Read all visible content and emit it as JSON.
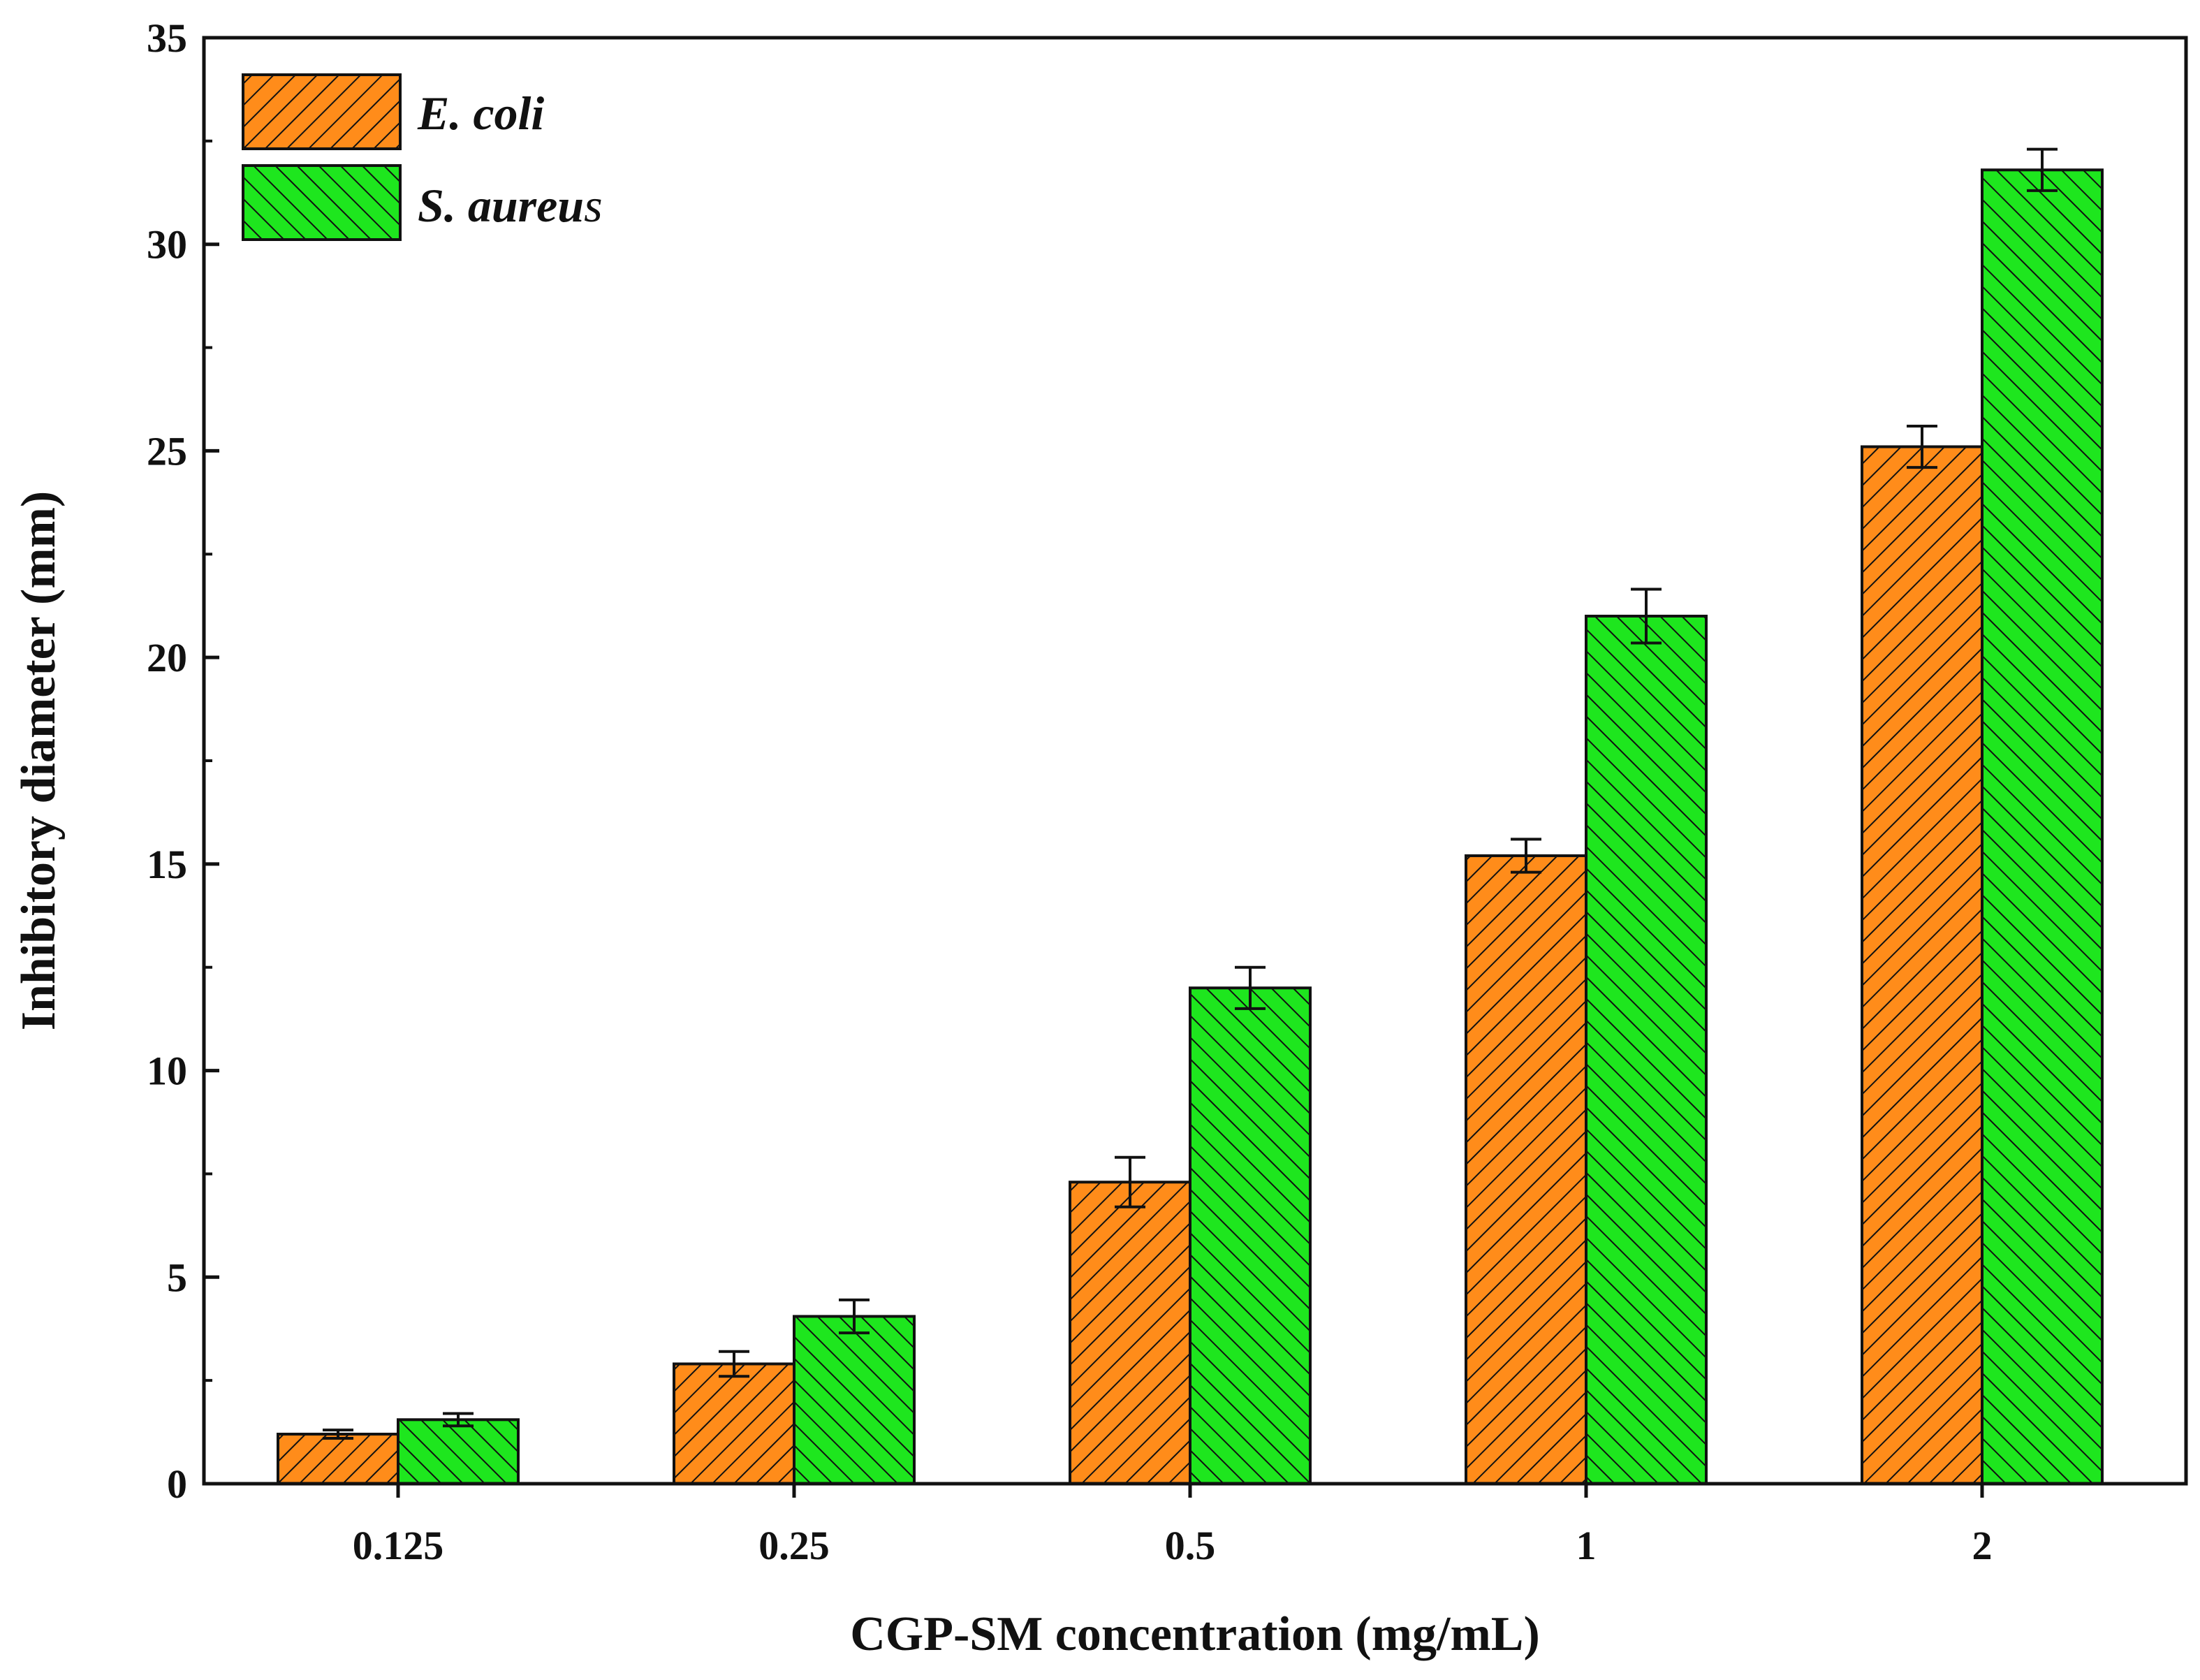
{
  "chart_data": {
    "type": "bar",
    "title": "",
    "xlabel": "CGP-SM concentration (mg/mL)",
    "ylabel": "Inhibitory diameter (mm)",
    "ylim": [
      0,
      35
    ],
    "yticks": [
      0,
      5,
      10,
      15,
      20,
      25,
      30,
      35
    ],
    "categories": [
      "0.125",
      "0.25",
      "0.5",
      "1",
      "2"
    ],
    "legend_position": "top-left",
    "series": [
      {
        "name_prefix": "E. coli",
        "name_suffix": "",
        "color": "#ff8c1a",
        "hatch": "forward-diagonal",
        "values": [
          1.2,
          2.9,
          7.3,
          15.2,
          25.1
        ],
        "errors": [
          0.1,
          0.3,
          0.6,
          0.4,
          0.5
        ]
      },
      {
        "name_prefix": "S. aureu",
        "name_suffix": "s",
        "color": "#1ee61e",
        "hatch": "backward-diagonal",
        "values": [
          1.55,
          4.05,
          12.0,
          21.0,
          31.8
        ],
        "errors": [
          0.15,
          0.4,
          0.5,
          0.65,
          0.5
        ]
      }
    ]
  }
}
